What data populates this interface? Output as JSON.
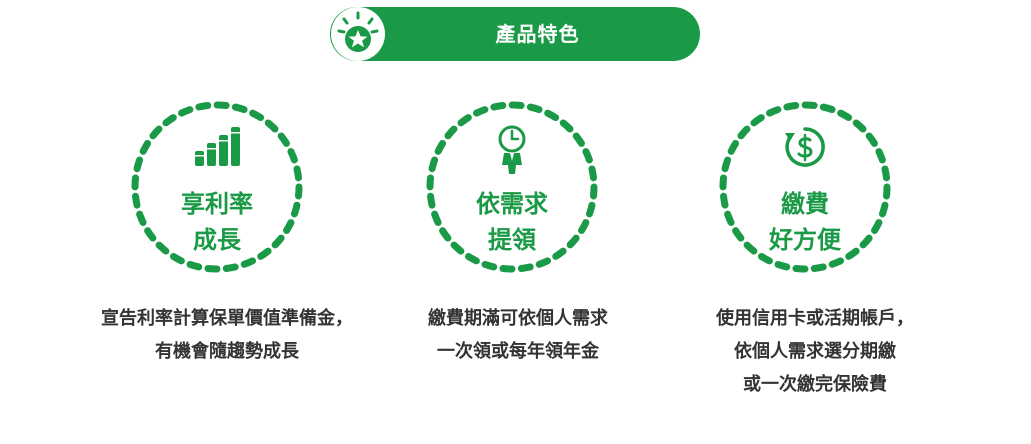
{
  "header": {
    "title": "產品特色",
    "badge_icon": "star-burst-icon",
    "color": "#1a9a46"
  },
  "features": [
    {
      "icon": "bar-chart-coins-icon",
      "label_line1": "享利率",
      "label_line2": "成長",
      "desc_lines": [
        "宣告利率計算保單價值準備金，",
        "有機會隨趨勢成長"
      ]
    },
    {
      "icon": "person-clock-icon",
      "label_line1": "依需求",
      "label_line2": "提領",
      "desc_lines": [
        "繳費期滿可依個人需求",
        "一次領或每年領年金"
      ]
    },
    {
      "icon": "dollar-cycle-icon",
      "label_line1": "繳費",
      "label_line2": "好方便",
      "desc_lines": [
        "使用信用卡或活期帳戶，",
        "依個人需求選分期繳",
        "或一次繳完保險費"
      ]
    }
  ],
  "colors": {
    "accent": "#1a9a46",
    "text": "#333333"
  }
}
